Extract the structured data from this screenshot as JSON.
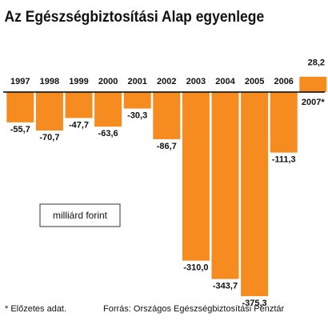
{
  "chart_data": {
    "type": "bar",
    "title": "Az Egészségbiztosítási Alap egyenlege",
    "categories": [
      "1997",
      "1998",
      "1999",
      "2000",
      "2001",
      "2002",
      "2003",
      "2004",
      "2005",
      "2006",
      "2007*"
    ],
    "values": [
      -55.7,
      -70.7,
      -47.7,
      -63.6,
      -30.3,
      -86.7,
      -310.0,
      -343.7,
      -375.3,
      -111.3,
      28.2
    ],
    "value_labels": [
      "-55,7",
      "-70,7",
      "-47,7",
      "-63,6",
      "-30,3",
      "-86,7",
      "-310,0",
      "-343,7",
      "-375,3",
      "-111,3",
      "28,2"
    ],
    "color": "#f68b1f",
    "unit_label": "milliárd forint",
    "footnote": "* Előzetes adat.",
    "source": "Forrás: Országos Egészségbiztosítási Pénztár"
  }
}
